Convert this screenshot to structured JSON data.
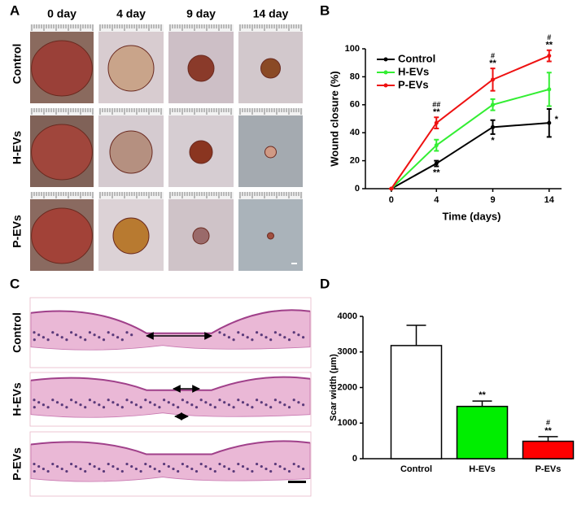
{
  "panels": {
    "a": "A",
    "b": "B",
    "c": "C",
    "d": "D"
  },
  "photo_grid": {
    "columns": [
      "0 day",
      "4 day",
      "9 day",
      "14 day"
    ],
    "rows": [
      "Control",
      "H-EVs",
      "P-EVs"
    ]
  },
  "histology": {
    "rows": [
      "Control",
      "H-EVs",
      "P-EVs"
    ]
  },
  "chart_data": [
    {
      "type": "line",
      "x_label": "Time (days)",
      "y_label": "Wound closure (%)",
      "x": [
        0,
        4,
        9,
        14
      ],
      "xlim": [
        -2.3,
        15.1
      ],
      "xticks": [
        0,
        4,
        9,
        14
      ],
      "ylim": [
        0,
        100
      ],
      "yticks": [
        0,
        20,
        40,
        60,
        80,
        100
      ],
      "legend": "upper left",
      "series": [
        {
          "name": "Control",
          "color": "#000000",
          "values": [
            0,
            18,
            44,
            47
          ],
          "errors": [
            0,
            2,
            5,
            10
          ],
          "annotations": [
            null,
            "**",
            "*",
            "*"
          ]
        },
        {
          "name": "H-EVs",
          "color": "#33ee33",
          "values": [
            0,
            31,
            60,
            71
          ],
          "errors": [
            0,
            4,
            4,
            12
          ]
        },
        {
          "name": "P-EVs",
          "color": "#ee1111",
          "values": [
            0,
            47,
            78,
            95
          ],
          "errors": [
            0,
            4,
            8,
            4
          ],
          "annotations": [
            null,
            "**",
            "**",
            "**"
          ],
          "annotations_hash": [
            null,
            "##",
            "#",
            "#"
          ]
        }
      ]
    },
    {
      "type": "bar",
      "y_label": "Scar width (μm)",
      "categories": [
        "Control",
        "H-EVs",
        "P-EVs"
      ],
      "values": [
        3180,
        1470,
        490
      ],
      "errors": [
        570,
        150,
        130
      ],
      "colors": [
        "#ffffff",
        "#00ee00",
        "#ff0000"
      ],
      "annotations": [
        null,
        "**",
        "**"
      ],
      "annotations_hash": [
        null,
        null,
        "#"
      ],
      "ylim": [
        0,
        4000
      ],
      "yticks": [
        0,
        1000,
        2000,
        3000,
        4000
      ]
    }
  ]
}
